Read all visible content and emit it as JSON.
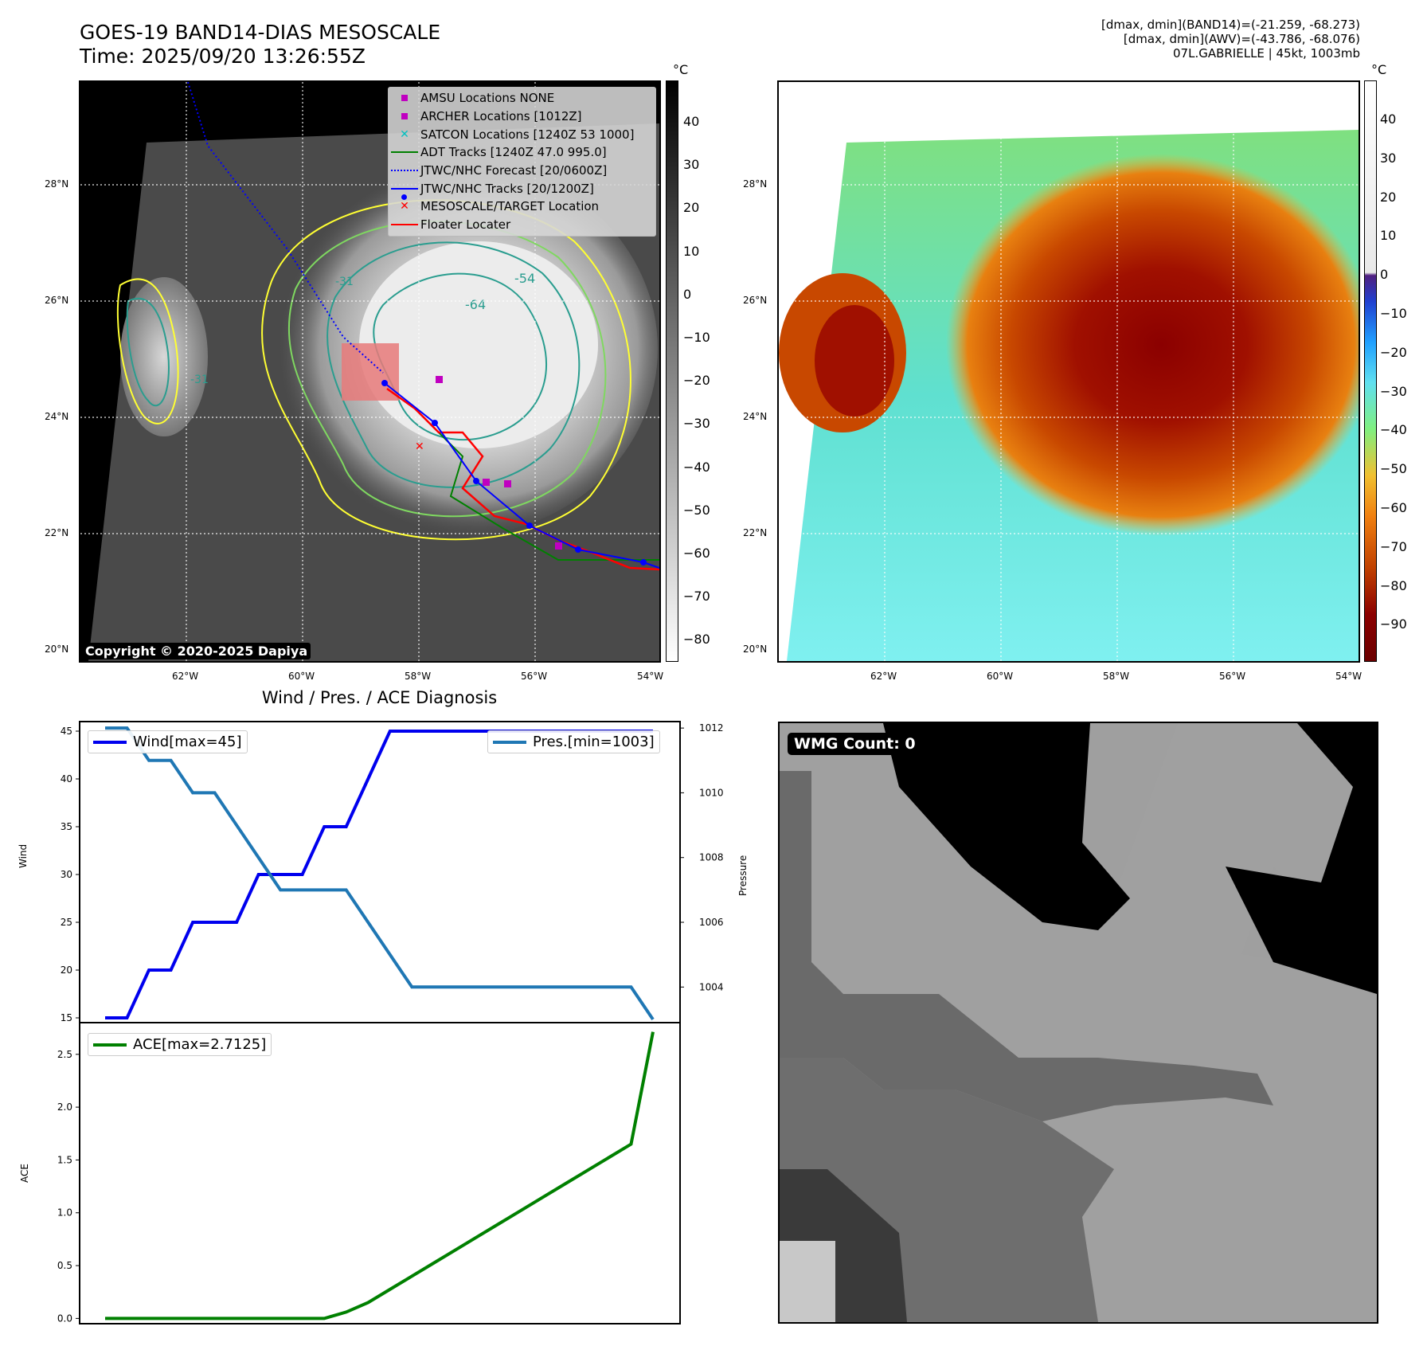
{
  "header": {
    "title": "GOES-19 BAND14-DIAS MESOSCALE",
    "time": "Time: 2025/09/20 13:26:55Z",
    "info_lines": [
      "[dmax, dmin](BAND14)=(-21.259, -68.273)",
      "[dmax, dmin](AWV)=(-43.786, -68.076)",
      "07L.GABRIELLE | 45kt, 1003mb"
    ]
  },
  "map_axes": {
    "lat_labels": [
      "28°N",
      "26°N",
      "24°N",
      "22°N",
      "20°N"
    ],
    "lon_labels": [
      "62°W",
      "60°W",
      "58°W",
      "56°W",
      "54°W"
    ]
  },
  "ir_panel": {
    "copyright": "Copyright © 2020-2025 Dapiya",
    "contour_labels": [
      "-54",
      "-64",
      "-31",
      "-31"
    ],
    "legend": [
      {
        "label": "AMSU Locations NONE",
        "symbol": "square",
        "color": "#c000c0"
      },
      {
        "label": "ARCHER Locations [1012Z]",
        "symbol": "square",
        "color": "#c000c0"
      },
      {
        "label": "SATCON Locations [1240Z 53 1000]",
        "symbol": "x",
        "color": "#00c0c0"
      },
      {
        "label": "ADT Tracks [1240Z 47.0 995.0]",
        "symbol": "line",
        "color": "#008000"
      },
      {
        "label": "JTWC/NHC Forecast [20/0600Z]",
        "symbol": "dotted",
        "color": "#0000ff"
      },
      {
        "label": "JTWC/NHC Tracks [20/1200Z]",
        "symbol": "line-dot",
        "color": "#0000ff"
      },
      {
        "label": "MESOSCALE/TARGET Location",
        "symbol": "x",
        "color": "#ff0000"
      },
      {
        "label": "Floater Locater",
        "symbol": "line",
        "color": "#ff0000"
      }
    ]
  },
  "colorbar_gray": {
    "unit": "°C",
    "ticks": [
      "40",
      "30",
      "20",
      "10",
      "0",
      "−10",
      "−20",
      "−30",
      "−40",
      "−50",
      "−60",
      "−70",
      "−80"
    ]
  },
  "colorbar_color": {
    "unit": "°C",
    "ticks": [
      "40",
      "30",
      "20",
      "10",
      "0",
      "−10",
      "−20",
      "−30",
      "−40",
      "−50",
      "−60",
      "−70",
      "−80",
      "−90"
    ]
  },
  "wmg_panel": {
    "label": "WMG Count: 0"
  },
  "chart_data": [
    {
      "type": "line",
      "title": "Wind / Pres. / ACE Diagnosis",
      "ylabel": "Wind",
      "y2label": "Pressure",
      "ylim": [
        14.5,
        46.0
      ],
      "y2lim": [
        1002.9,
        1012.2
      ],
      "yticks": [
        "45",
        "40",
        "35",
        "30",
        "25",
        "20",
        "15"
      ],
      "y2ticks": [
        "1012",
        "1010",
        "1008",
        "1006",
        "1004"
      ],
      "series": [
        {
          "name": "Wind[max=45]",
          "axis": "left",
          "color": "#0000ee",
          "values": [
            15,
            15,
            20,
            20,
            25,
            25,
            25,
            30,
            30,
            30,
            35,
            35,
            40,
            45,
            45,
            45,
            45,
            45,
            45,
            45,
            45,
            45,
            45,
            45,
            45,
            45
          ]
        },
        {
          "name": "Pres.[min=1003]",
          "axis": "right",
          "color": "#1f77b4",
          "values": [
            1012,
            1012,
            1011,
            1011,
            1010,
            1010,
            1009,
            1008,
            1007,
            1007,
            1007,
            1007,
            1006,
            1005,
            1004,
            1004,
            1004,
            1004,
            1004,
            1004,
            1004,
            1004,
            1004,
            1004,
            1004,
            1003
          ]
        }
      ]
    },
    {
      "type": "line",
      "ylabel": "ACE",
      "ylim": [
        -0.05,
        2.8
      ],
      "yticks": [
        "2.5",
        "2.0",
        "1.5",
        "1.0",
        "0.5",
        "0.0"
      ],
      "series": [
        {
          "name": "ACE[max=2.7125]",
          "color": "#008000",
          "values": [
            0,
            0,
            0,
            0,
            0,
            0,
            0,
            0,
            0,
            0,
            0,
            0.06,
            0.15,
            0.275,
            0.4,
            0.525,
            0.65,
            0.775,
            0.9,
            1.025,
            1.15,
            1.275,
            1.4,
            1.525,
            1.65,
            2.7125
          ]
        }
      ]
    }
  ]
}
